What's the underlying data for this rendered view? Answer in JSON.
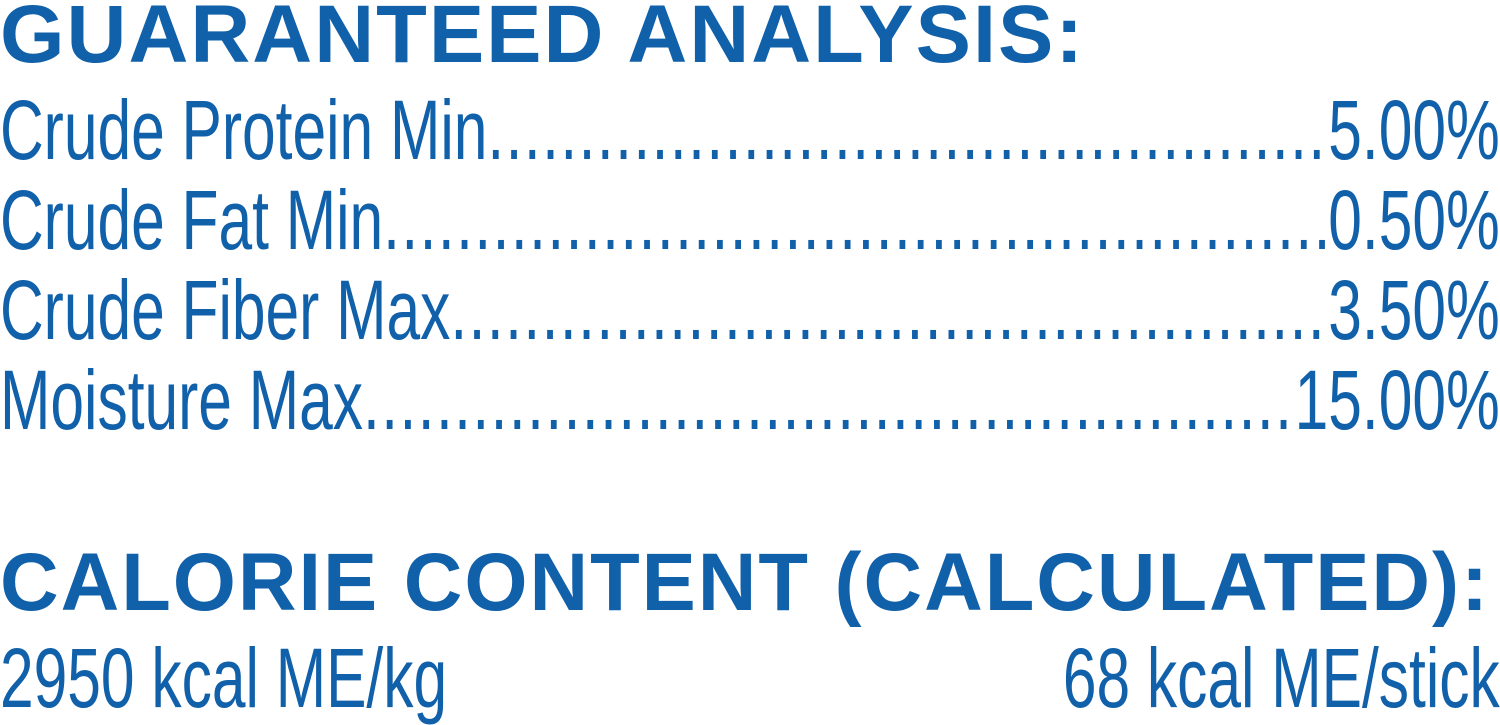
{
  "guaranteed_analysis": {
    "title": "GUARANTEED ANALYSIS:",
    "rows": [
      {
        "label": "Crude Protein Min",
        "value": "5.00%"
      },
      {
        "label": "Crude Fat Min",
        "value": "0.50%"
      },
      {
        "label": "Crude Fiber Max",
        "value": "3.50%"
      },
      {
        "label": "Moisture Max",
        "value": "15.00%"
      }
    ]
  },
  "calorie_content": {
    "title": "CALORIE CONTENT (CALCULATED):",
    "per_kg": "2950 kcal ME/kg",
    "per_stick": "68 kcal ME/stick"
  },
  "colors": {
    "text": "#1160aa",
    "background": "#ffffff"
  }
}
